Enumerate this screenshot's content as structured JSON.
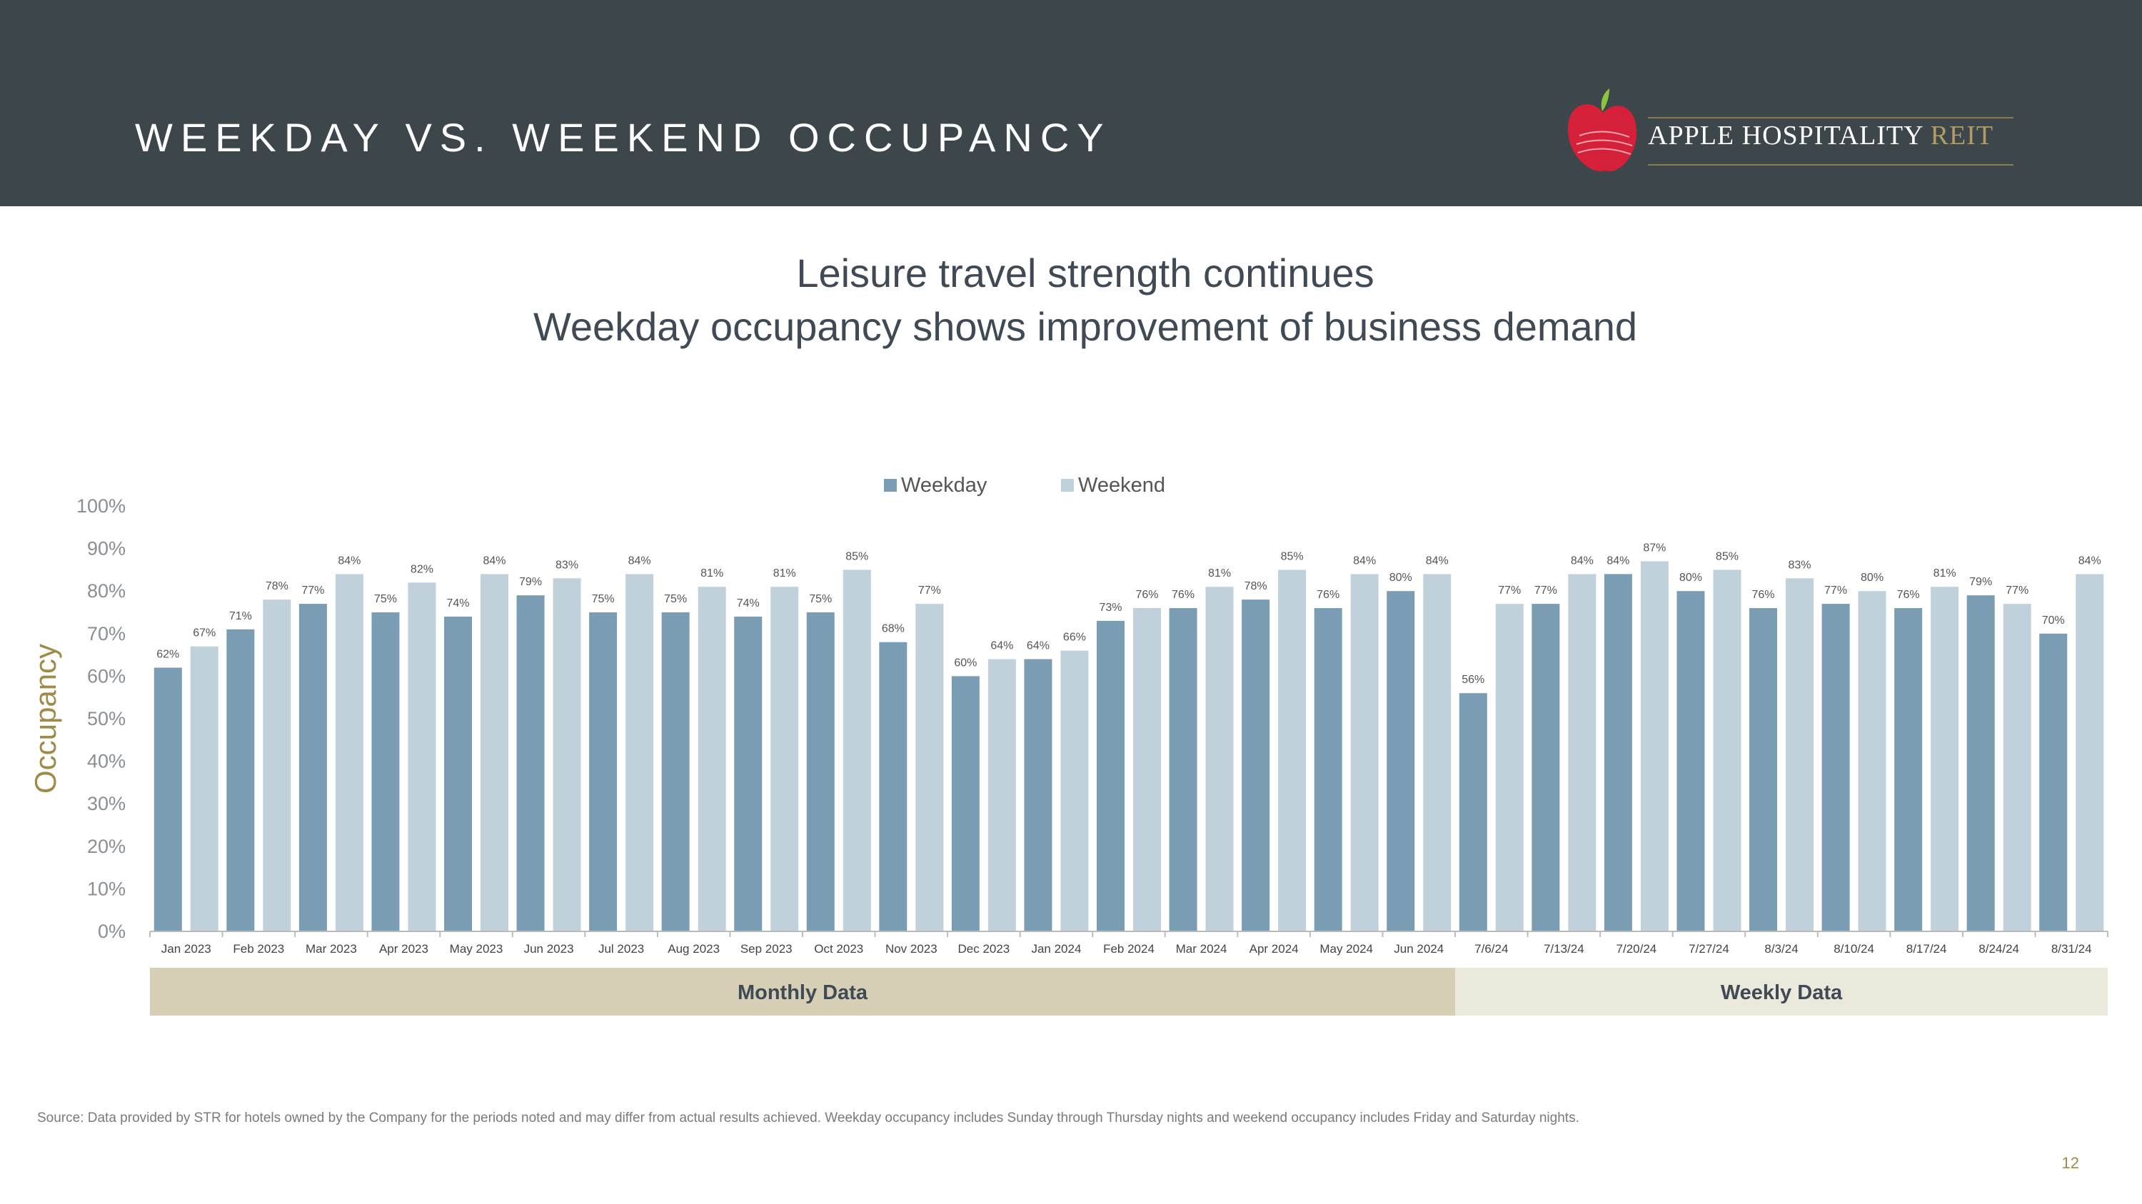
{
  "header": {
    "title": "WEEKDAY VS. WEEKEND OCCUPANCY"
  },
  "logo": {
    "name": "APPLE HOSPITALITY",
    "suffix": "REIT"
  },
  "subtitle": {
    "line1": "Leisure travel strength continues",
    "line2": "Weekday occupancy shows improvement of business demand"
  },
  "colors": {
    "weekday": "#7b9db3",
    "weekend": "#c1d1db",
    "monthly_band": "#d6cfb6",
    "weekly_band": "#ebe8dc",
    "accent": "#a08a48"
  },
  "chart_data": {
    "type": "bar",
    "ylabel": "Occupancy",
    "ylim": [
      0,
      100
    ],
    "yticks": [
      "0%",
      "10%",
      "20%",
      "30%",
      "40%",
      "50%",
      "60%",
      "70%",
      "80%",
      "90%",
      "100%"
    ],
    "legend_position": "top-center",
    "categories": [
      "Jan 2023",
      "Feb 2023",
      "Mar 2023",
      "Apr 2023",
      "May 2023",
      "Jun 2023",
      "Jul 2023",
      "Aug 2023",
      "Sep 2023",
      "Oct 2023",
      "Nov 2023",
      "Dec 2023",
      "Jan 2024",
      "Feb 2024",
      "Mar 2024",
      "Apr 2024",
      "May 2024",
      "Jun 2024",
      "7/6/24",
      "7/13/24",
      "7/20/24",
      "7/27/24",
      "8/3/24",
      "8/10/24",
      "8/17/24",
      "8/24/24",
      "8/31/24"
    ],
    "series": [
      {
        "name": "Weekday",
        "values": [
          62,
          71,
          77,
          75,
          74,
          79,
          75,
          75,
          74,
          75,
          68,
          60,
          64,
          73,
          76,
          78,
          76,
          80,
          56,
          77,
          84,
          80,
          76,
          77,
          76,
          79,
          70
        ]
      },
      {
        "name": "Weekend",
        "values": [
          67,
          78,
          84,
          82,
          84,
          83,
          84,
          81,
          81,
          85,
          77,
          64,
          66,
          76,
          81,
          85,
          84,
          84,
          77,
          84,
          87,
          85,
          83,
          80,
          81,
          77,
          84
        ]
      }
    ],
    "groups": [
      {
        "label": "Monthly Data",
        "count": 18
      },
      {
        "label": "Weekly Data",
        "count": 9
      }
    ]
  },
  "footer": {
    "source": "Source:  Data provided by STR for hotels owned by the Company for the periods noted and may differ from actual results achieved. Weekday occupancy includes Sunday through Thursday nights and weekend occupancy includes Friday and Saturday nights.",
    "page_number": "12"
  }
}
